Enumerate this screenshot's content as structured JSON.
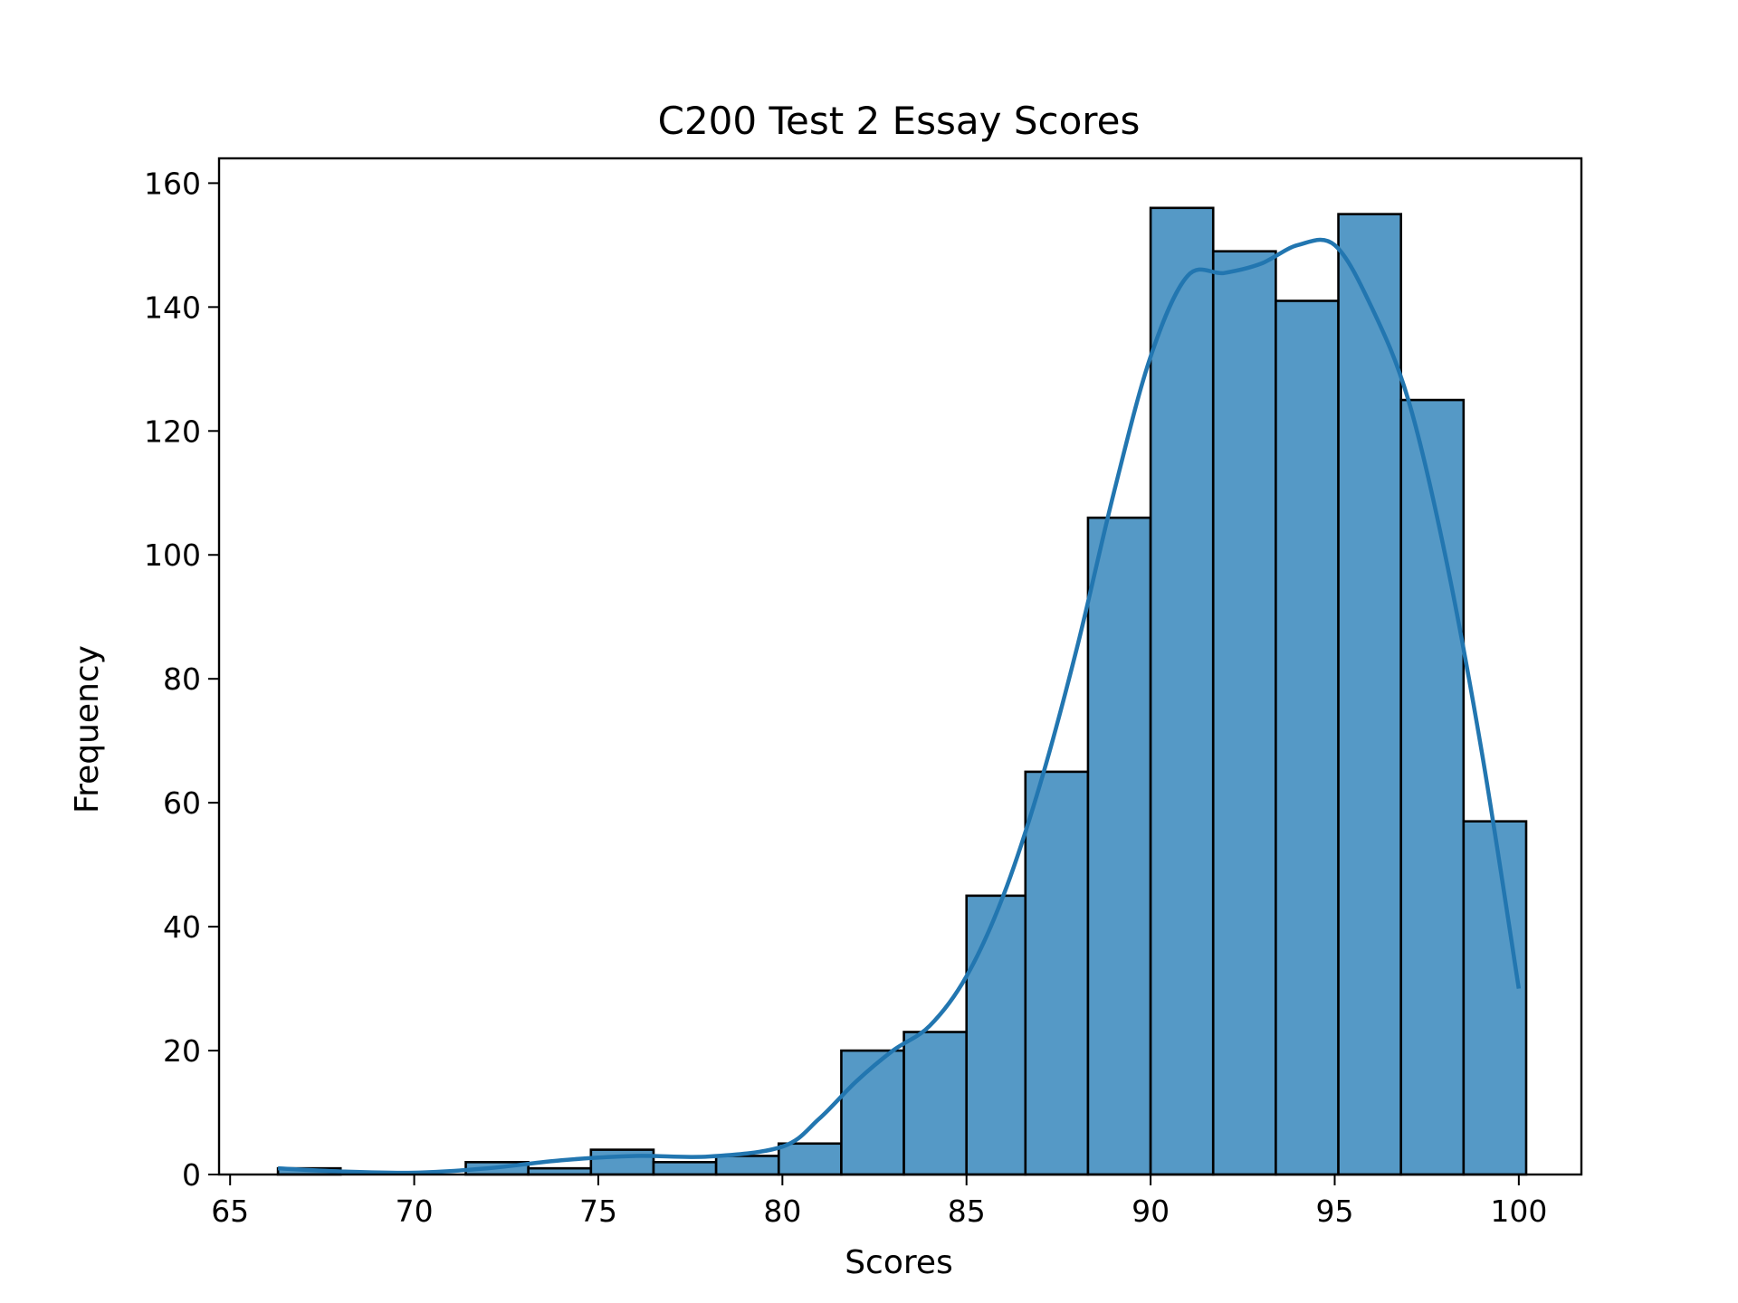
{
  "chart_data": {
    "type": "bar",
    "subtype": "histogram",
    "title": "C200 Test 2 Essay Scores",
    "xlabel": "Scores",
    "ylabel": "Frequency",
    "xlim": [
      64.7,
      101.7
    ],
    "ylim": [
      0,
      164
    ],
    "xticks": [
      65,
      70,
      75,
      80,
      85,
      90,
      95,
      100
    ],
    "yticks": [
      0,
      20,
      40,
      60,
      80,
      100,
      120,
      140,
      160
    ],
    "grid": false,
    "legend": false,
    "colors": {
      "bar_fill": "#5599c6",
      "bar_edge": "#000000",
      "kde_line": "#2276b0"
    },
    "bins": [
      {
        "x0": 66.3,
        "x1": 68.0,
        "count": 1
      },
      {
        "x0": 68.0,
        "x1": 69.7,
        "count": 0
      },
      {
        "x0": 69.7,
        "x1": 71.4,
        "count": 0
      },
      {
        "x0": 71.4,
        "x1": 73.1,
        "count": 2
      },
      {
        "x0": 73.1,
        "x1": 74.8,
        "count": 1
      },
      {
        "x0": 74.8,
        "x1": 76.5,
        "count": 4
      },
      {
        "x0": 76.5,
        "x1": 78.2,
        "count": 2
      },
      {
        "x0": 78.2,
        "x1": 79.9,
        "count": 3
      },
      {
        "x0": 79.9,
        "x1": 81.6,
        "count": 5
      },
      {
        "x0": 81.6,
        "x1": 83.3,
        "count": 20
      },
      {
        "x0": 83.3,
        "x1": 85.0,
        "count": 23
      },
      {
        "x0": 85.0,
        "x1": 86.6,
        "count": 45
      },
      {
        "x0": 86.6,
        "x1": 88.3,
        "count": 65
      },
      {
        "x0": 88.3,
        "x1": 90.0,
        "count": 106
      },
      {
        "x0": 90.0,
        "x1": 91.7,
        "count": 156
      },
      {
        "x0": 91.7,
        "x1": 93.4,
        "count": 149
      },
      {
        "x0": 93.4,
        "x1": 95.1,
        "count": 141
      },
      {
        "x0": 95.1,
        "x1": 96.8,
        "count": 155
      },
      {
        "x0": 96.8,
        "x1": 98.5,
        "count": 125
      },
      {
        "x0": 98.5,
        "x1": 100.2,
        "count": 57
      }
    ],
    "kde": [
      [
        66.3,
        1
      ],
      [
        68,
        0.5
      ],
      [
        70,
        0.3
      ],
      [
        72,
        1
      ],
      [
        74,
        2.3
      ],
      [
        76,
        3
      ],
      [
        78,
        2.9
      ],
      [
        80,
        4.5
      ],
      [
        81,
        9
      ],
      [
        82,
        15
      ],
      [
        83,
        20
      ],
      [
        84,
        24
      ],
      [
        85,
        32
      ],
      [
        86,
        45
      ],
      [
        87,
        63
      ],
      [
        88,
        85
      ],
      [
        89,
        110
      ],
      [
        90,
        132
      ],
      [
        91,
        145
      ],
      [
        92,
        145.5
      ],
      [
        93,
        147
      ],
      [
        94,
        150
      ],
      [
        95,
        150
      ],
      [
        96,
        140
      ],
      [
        97,
        125
      ],
      [
        98,
        100
      ],
      [
        99,
        68
      ],
      [
        100,
        30
      ]
    ]
  }
}
